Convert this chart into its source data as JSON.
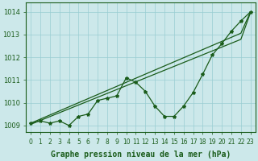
{
  "x": [
    0,
    1,
    2,
    3,
    4,
    5,
    6,
    7,
    8,
    9,
    10,
    11,
    12,
    13,
    14,
    15,
    16,
    17,
    18,
    19,
    20,
    21,
    22,
    23
  ],
  "line_smooth1": [
    1009.1,
    1009.28,
    1009.46,
    1009.64,
    1009.82,
    1010.0,
    1010.18,
    1010.36,
    1010.54,
    1010.72,
    1010.9,
    1011.08,
    1011.26,
    1011.44,
    1011.62,
    1011.8,
    1011.98,
    1012.16,
    1012.34,
    1012.52,
    1012.7,
    1012.88,
    1013.06,
    1014.0
  ],
  "line_smooth2": [
    1009.05,
    1009.22,
    1009.39,
    1009.56,
    1009.73,
    1009.9,
    1010.07,
    1010.24,
    1010.41,
    1010.58,
    1010.75,
    1010.92,
    1011.09,
    1011.26,
    1011.43,
    1011.6,
    1011.77,
    1011.94,
    1012.11,
    1012.28,
    1012.45,
    1012.62,
    1012.79,
    1013.96
  ],
  "line_data": [
    1009.1,
    1009.2,
    1009.1,
    1009.2,
    1009.0,
    1009.4,
    1009.5,
    1010.1,
    1010.2,
    1010.3,
    1011.1,
    1010.9,
    1010.5,
    1009.85,
    1009.4,
    1009.4,
    1009.85,
    1010.45,
    1011.25,
    1012.1,
    1012.6,
    1013.15,
    1013.6,
    1014.0
  ],
  "bg_color": "#cce8ea",
  "grid_color": "#99cdd2",
  "line_color": "#1a5c1a",
  "marker": "*",
  "marker_size": 3,
  "ylabel_ticks": [
    1009,
    1010,
    1011,
    1012,
    1013,
    1014
  ],
  "ylim": [
    1008.7,
    1014.4
  ],
  "xlim": [
    -0.5,
    23.5
  ],
  "xlabel": "Graphe pression niveau de la mer (hPa)",
  "xlabel_fontsize": 7,
  "tick_fontsize": 6
}
